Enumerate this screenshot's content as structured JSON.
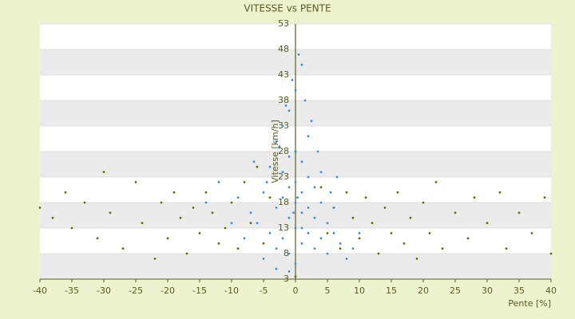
{
  "chart_data": {
    "type": "scatter",
    "title": "VITESSE vs PENTE",
    "x_label": "Pente [%]",
    "y_label": "Vitesse [km/h]",
    "xlim": [
      -40,
      40
    ],
    "xticks": [
      -40,
      -35,
      -30,
      -25,
      -20,
      -15,
      -10,
      -5,
      0,
      5,
      10,
      15,
      20,
      25,
      30,
      35,
      40
    ],
    "ylim": [
      3,
      53
    ],
    "yticks": [
      3,
      8,
      13,
      18,
      23,
      28,
      33,
      38,
      43,
      48,
      53
    ],
    "grid": true,
    "series": [
      {
        "color": "#6b6b00",
        "x": [
          -40,
          -38,
          -36,
          -35,
          -33,
          -31,
          -30,
          -29,
          -27,
          -25,
          -24,
          -22,
          -21,
          -20,
          -19,
          -18,
          -17,
          -16,
          -15,
          -14,
          -13,
          -12,
          -11,
          -10,
          -9,
          -8,
          -7,
          -6,
          -5,
          -4,
          0,
          0,
          4,
          5,
          6,
          7,
          8,
          9,
          10,
          11,
          12,
          13,
          14,
          15,
          16,
          17,
          18,
          19,
          20,
          21,
          22,
          23,
          25,
          27,
          28,
          30,
          32,
          33,
          35,
          37,
          39,
          40
        ],
        "y": [
          17,
          15,
          20,
          13,
          18,
          11,
          24,
          16,
          9,
          22,
          14,
          7,
          18,
          11,
          20,
          15,
          8,
          17,
          12,
          20,
          16,
          10,
          13,
          18,
          9,
          22,
          14,
          25,
          10,
          19,
          3.5,
          28,
          21,
          12,
          17,
          9,
          20,
          15,
          11,
          19,
          14,
          8,
          17,
          12,
          20,
          10,
          15,
          7,
          18,
          12,
          22,
          9,
          16,
          11,
          19,
          14,
          20,
          9,
          16,
          12,
          19,
          8
        ]
      },
      {
        "color": "#3b8fd9",
        "x": [
          -6,
          -5,
          -4,
          -4,
          -3,
          -3,
          -3,
          -2,
          -2,
          -2,
          -2,
          -1,
          -1,
          -1,
          -1,
          -1,
          0,
          0,
          0,
          0,
          0,
          0,
          1,
          1,
          1,
          1,
          1,
          2,
          2,
          2,
          2,
          3,
          3,
          3,
          4,
          4,
          4,
          5,
          5,
          6,
          6,
          7,
          8,
          -7,
          -8,
          -9,
          -10,
          -12,
          -14,
          -5,
          -3,
          -1,
          0.5,
          1.5,
          2.5,
          3.5,
          -0.5,
          -1.5,
          -2.5,
          0.3,
          -0.3,
          1,
          -4.5,
          5.5,
          9,
          10,
          -6.5,
          6.5
        ],
        "y": [
          14,
          20,
          12,
          25,
          9,
          17,
          30,
          11,
          19,
          24,
          33,
          8,
          15,
          21,
          27,
          36,
          6,
          13,
          18,
          22,
          28,
          40,
          10,
          16,
          20,
          26,
          45,
          12,
          17,
          23,
          31,
          9,
          15,
          21,
          11,
          18,
          24,
          8,
          14,
          12,
          17,
          10,
          7,
          16,
          11,
          19,
          14,
          22,
          18,
          7,
          5,
          4.5,
          47,
          38,
          34,
          28,
          42,
          37,
          29,
          19,
          16,
          13,
          22,
          20,
          9,
          12,
          26,
          23
        ]
      }
    ]
  }
}
